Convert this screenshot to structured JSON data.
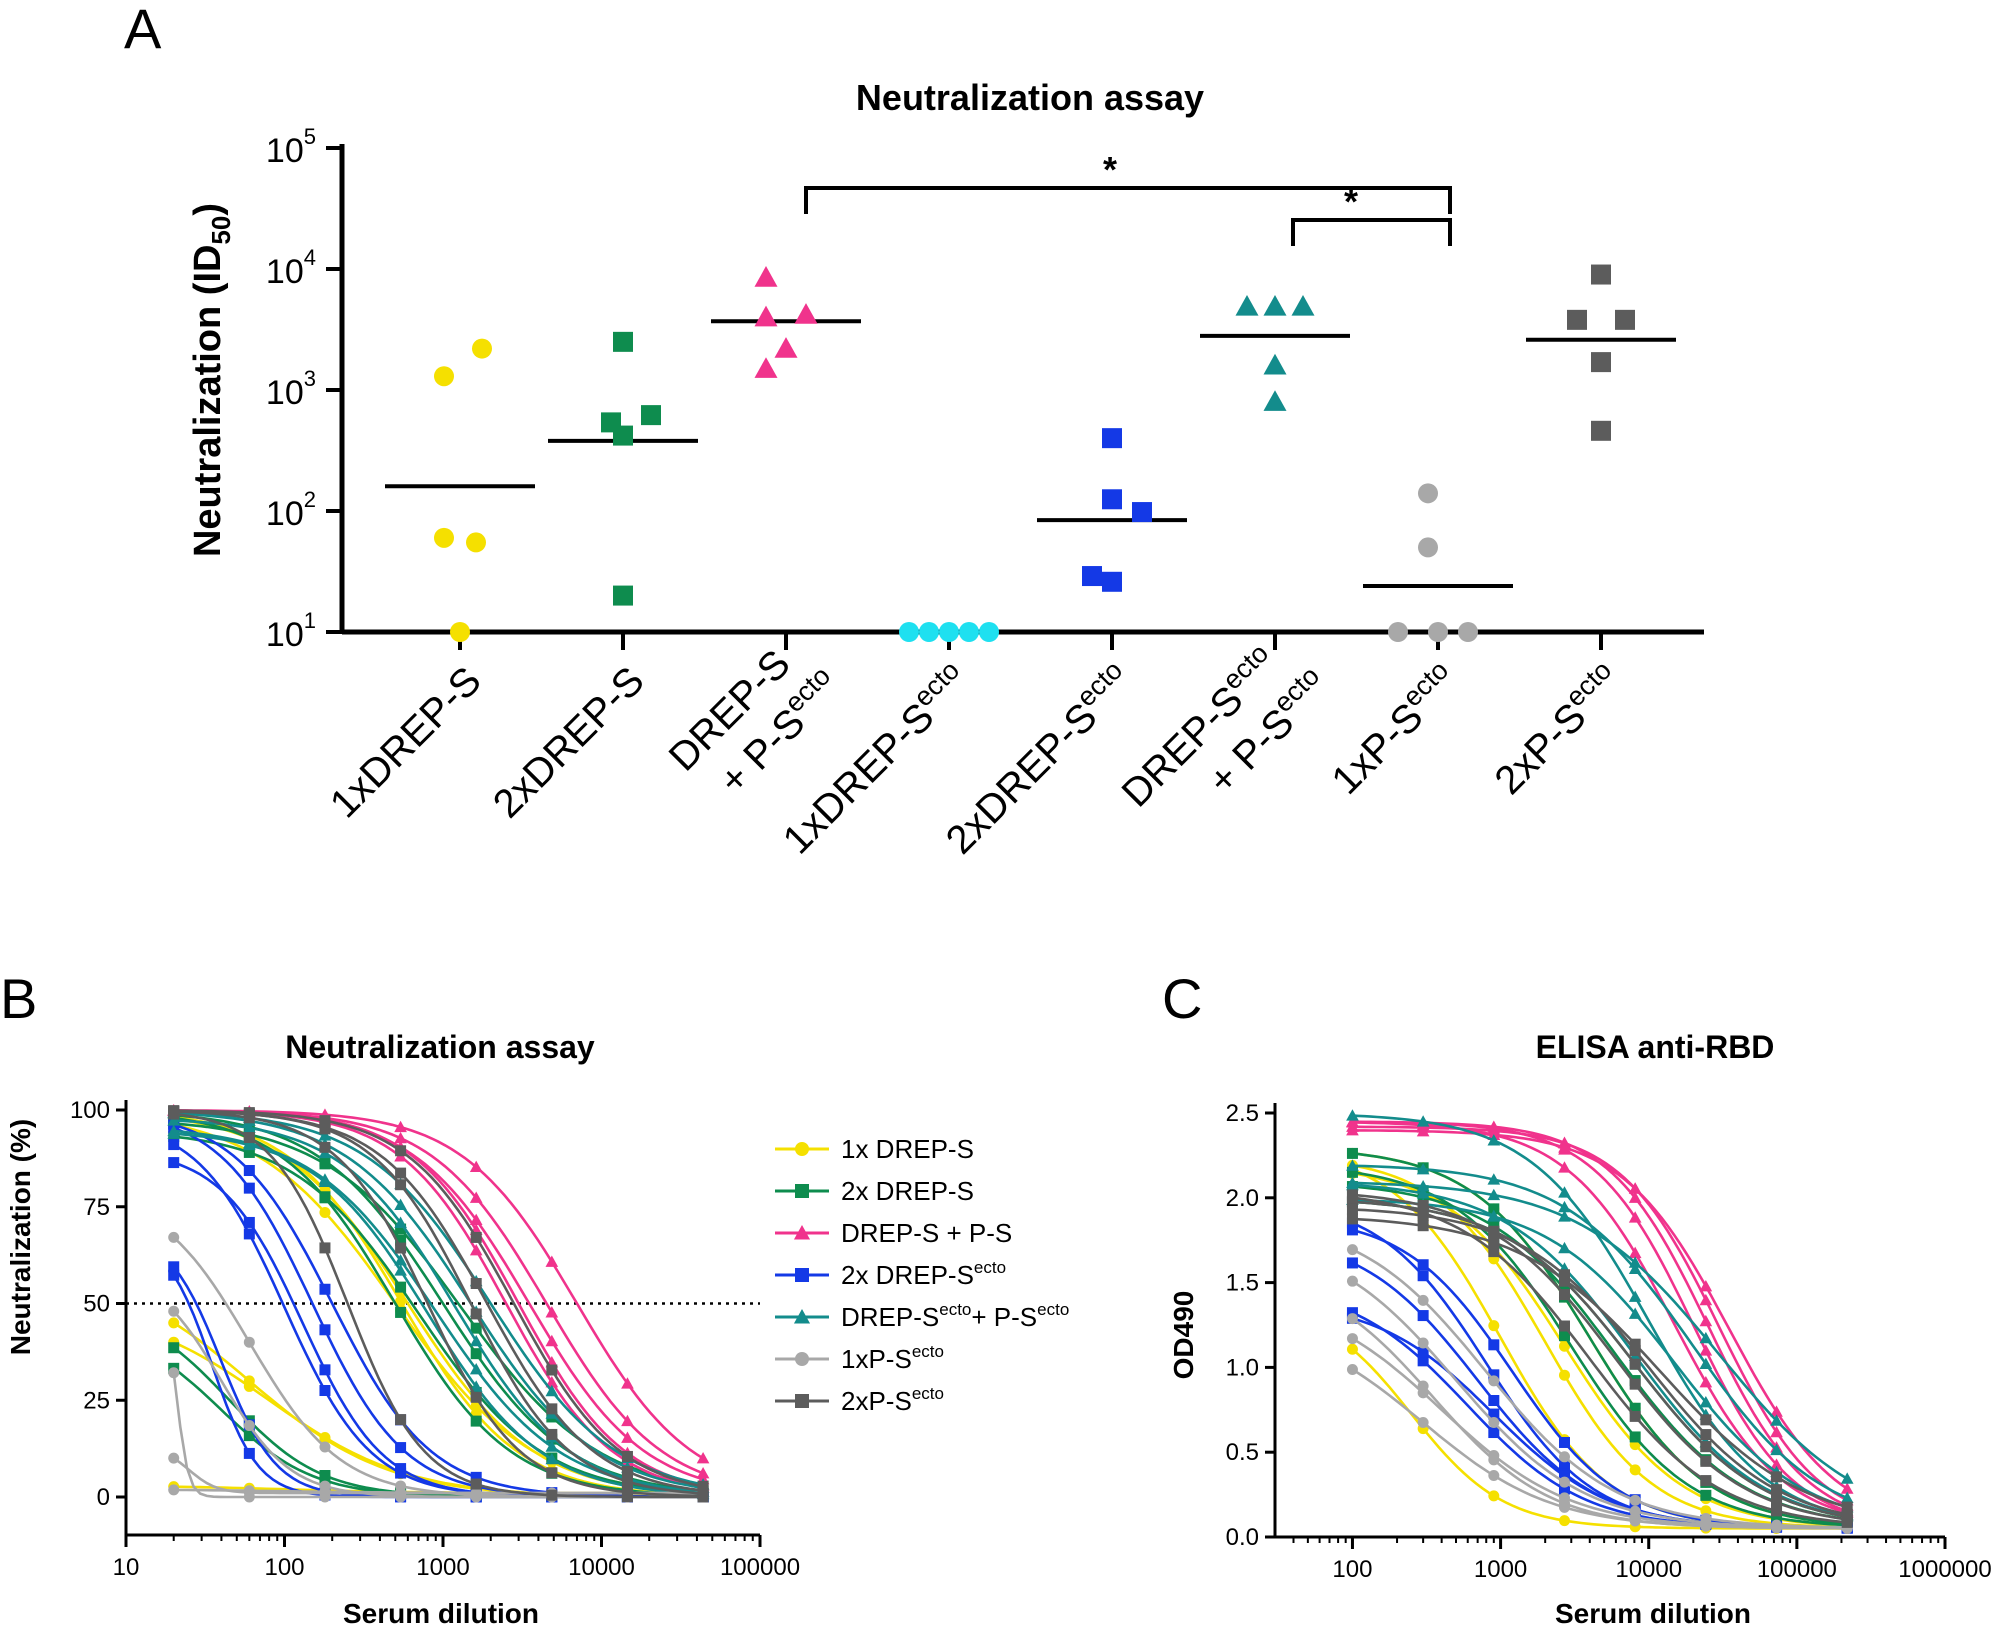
{
  "panels": {
    "a": {
      "letter": "A"
    },
    "b": {
      "letter": "B"
    },
    "c": {
      "letter": "C"
    }
  },
  "chart_data": [
    {
      "type": "scatter",
      "panel": "A",
      "title": "Neutralization assay",
      "ylabel": "Neutralization (ID50)",
      "ylabel_main": "Neutralization (ID",
      "ylabel_sub": "50",
      "ylabel_close": ")",
      "yscale": "log",
      "ylim": [
        10,
        100000
      ],
      "ytick_base": "10",
      "yticks": [
        {
          "value": 10,
          "exp": "1"
        },
        {
          "value": 100,
          "exp": "2"
        },
        {
          "value": 1000,
          "exp": "3"
        },
        {
          "value": 10000,
          "exp": "4"
        },
        {
          "value": 100000,
          "exp": "5"
        }
      ],
      "categories": [
        {
          "line1": "1xDREP-S",
          "sup1": "",
          "line2": "",
          "sup2": ""
        },
        {
          "line1": "2xDREP-S",
          "sup1": "",
          "line2": "",
          "sup2": ""
        },
        {
          "line1": "DREP-S",
          "sup1": "",
          "line2": "+ P-S",
          "sup2": "ecto"
        },
        {
          "line1": "1xDREP-S",
          "sup1": "ecto",
          "line2": "",
          "sup2": ""
        },
        {
          "line1": "2xDREP-S",
          "sup1": "ecto",
          "line2": "",
          "sup2": ""
        },
        {
          "line1": "DREP-S",
          "sup1": "ecto",
          "line2": "+ P-S",
          "sup2": "ecto"
        },
        {
          "line1": "1xP-S",
          "sup1": "ecto",
          "line2": "",
          "sup2": ""
        },
        {
          "line1": "2xP-S",
          "sup1": "ecto",
          "line2": "",
          "sup2": ""
        }
      ],
      "series": [
        {
          "name": "1xDREP-S",
          "color": "#f5e000",
          "marker": "circle",
          "values": [
            2200,
            1300,
            60,
            55,
            10
          ],
          "median": 160
        },
        {
          "name": "2xDREP-S",
          "color": "#0e8c4e",
          "marker": "square",
          "values": [
            2500,
            620,
            540,
            420,
            20
          ],
          "median": 380
        },
        {
          "name": "DREP-S + P-Secto",
          "color": "#f0338c",
          "marker": "triangle",
          "values": [
            8500,
            4200,
            4000,
            2200,
            1500
          ],
          "median": 3700
        },
        {
          "name": "1xDREP-Secto",
          "color": "#1ee0f0",
          "marker": "circle",
          "values": [
            10,
            10,
            10,
            10,
            10
          ],
          "median": null
        },
        {
          "name": "2xDREP-Secto",
          "color": "#1439e6",
          "marker": "square",
          "values": [
            400,
            125,
            98,
            29,
            26
          ],
          "median": 84
        },
        {
          "name": "DREP-Secto + P-Secto",
          "color": "#138c8c",
          "marker": "triangle",
          "values": [
            4900,
            4900,
            4900,
            1600,
            800
          ],
          "median": 2800
        },
        {
          "name": "1xP-Secto",
          "color": "#a8a8a8",
          "marker": "circle",
          "values": [
            140,
            50,
            10,
            10,
            10
          ],
          "median": 24
        },
        {
          "name": "2xP-Secto",
          "color": "#5c5c5c",
          "marker": "square",
          "values": [
            9000,
            3800,
            3800,
            1700,
            460
          ],
          "median": 2600
        }
      ],
      "significance": [
        {
          "from": 2,
          "to": 6,
          "label": "*"
        },
        {
          "from": 5,
          "to": 6,
          "label": "*"
        }
      ]
    },
    {
      "type": "line",
      "panel": "B",
      "title": "Neutralization assay",
      "xlabel": "Serum dilution",
      "ylabel": "Neutralization (%)",
      "xscale": "log",
      "xlim": [
        10,
        100000
      ],
      "ylim": [
        -8,
        100
      ],
      "xticks": [
        "10",
        "100",
        "1000",
        "10000",
        "100000"
      ],
      "yticks": [
        "0",
        "25",
        "50",
        "75",
        "100"
      ],
      "reference_line": {
        "y": 50,
        "style": "dotted"
      },
      "dilutions": [
        20,
        60,
        180,
        540,
        1620,
        4860,
        14580,
        43740
      ],
      "legend_position": "right",
      "series": [
        {
          "name": "1x DREP-S",
          "label": "1x DREP-S",
          "sup": "",
          "color": "#f5e000",
          "marker": "circle",
          "curves": [
            {
              "top": 100,
              "bottom": 0,
              "ic50": 600,
              "hill": 1.1
            },
            {
              "top": 100,
              "bottom": 0,
              "ic50": 550,
              "hill": 1.2
            },
            {
              "top": 100,
              "bottom": 0,
              "ic50": 500,
              "hill": 1.0
            },
            {
              "top": 60,
              "bottom": 0,
              "ic50": 60,
              "hill": 1.0
            },
            {
              "top": 50,
              "bottom": 0,
              "ic50": 80,
              "hill": 1.0
            },
            {
              "top": 3,
              "bottom": 1,
              "ic50": 100,
              "hill": 1.0
            }
          ]
        },
        {
          "name": "2x DREP-S",
          "label": "2x DREP-S",
          "sup": "",
          "color": "#0e8c4e",
          "marker": "square",
          "curves": [
            {
              "top": 100,
              "bottom": 0,
              "ic50": 1000,
              "hill": 1.1
            },
            {
              "top": 98,
              "bottom": 0,
              "ic50": 1300,
              "hill": 1.0
            },
            {
              "top": 95,
              "bottom": 0,
              "ic50": 700,
              "hill": 1.1
            },
            {
              "top": 100,
              "bottom": 0,
              "ic50": 500,
              "hill": 1.2
            },
            {
              "top": 50,
              "bottom": 0,
              "ic50": 45,
              "hill": 1.5
            },
            {
              "top": 45,
              "bottom": 0,
              "ic50": 40,
              "hill": 1.5
            }
          ]
        },
        {
          "name": "DREP-S + P-S",
          "label": "DREP-S + P-S",
          "sup": "",
          "color": "#f0338c",
          "marker": "triangle",
          "curves": [
            {
              "top": 100,
              "bottom": 0,
              "ic50": 7000,
              "hill": 1.2
            },
            {
              "top": 100,
              "bottom": 0,
              "ic50": 4500,
              "hill": 1.2
            },
            {
              "top": 100,
              "bottom": 0,
              "ic50": 3000,
              "hill": 1.3
            },
            {
              "top": 100,
              "bottom": 0,
              "ic50": 3500,
              "hill": 1.2
            },
            {
              "top": 100,
              "bottom": 0,
              "ic50": 2500,
              "hill": 1.3
            }
          ]
        },
        {
          "name": "2x DREP-Secto",
          "label": "2x DREP-S",
          "sup": "ecto",
          "color": "#1439e6",
          "marker": "square",
          "curves": [
            {
              "top": 100,
              "bottom": 0,
              "ic50": 150,
              "hill": 1.5
            },
            {
              "top": 100,
              "bottom": 0,
              "ic50": 200,
              "hill": 1.4
            },
            {
              "top": 98,
              "bottom": 0,
              "ic50": 100,
              "hill": 1.6
            },
            {
              "top": 90,
              "bottom": 0,
              "ic50": 130,
              "hill": 1.7
            },
            {
              "top": 70,
              "bottom": 0,
              "ic50": 40,
              "hill": 2.5
            },
            {
              "top": 68,
              "bottom": 0,
              "ic50": 35,
              "hill": 3.0
            }
          ]
        },
        {
          "name": "DREP-Secto+ P-Secto",
          "label": "DREP-S",
          "sup": "ecto",
          "label2": "+ P-S",
          "sup2": "ecto",
          "color": "#138c8c",
          "marker": "triangle",
          "curves": [
            {
              "top": 100,
              "bottom": 0,
              "ic50": 2000,
              "hill": 1.1
            },
            {
              "top": 100,
              "bottom": 0,
              "ic50": 1500,
              "hill": 1.1
            },
            {
              "top": 98,
              "bottom": 0,
              "ic50": 1200,
              "hill": 1.2
            },
            {
              "top": 96,
              "bottom": 0,
              "ic50": 900,
              "hill": 1.1
            },
            {
              "top": 95,
              "bottom": 0,
              "ic50": 800,
              "hill": 1.2
            }
          ]
        },
        {
          "name": "1xP-Secto",
          "label": "1xP-S",
          "sup": "ecto",
          "color": "#a8a8a8",
          "marker": "circle",
          "curves": [
            {
              "top": 80,
              "bottom": 0,
              "ic50": 60,
              "hill": 1.5
            },
            {
              "top": 60,
              "bottom": 0,
              "ic50": 40,
              "hill": 2.0
            },
            {
              "top": 50,
              "bottom": 0,
              "ic50": 21,
              "hill": 12.0
            },
            {
              "top": 13,
              "bottom": 1,
              "ic50": 25,
              "hill": 5.0
            },
            {
              "top": 2,
              "bottom": 1,
              "ic50": 100,
              "hill": 1.0
            }
          ]
        },
        {
          "name": "2xP-Secto",
          "label": "2xP-S",
          "sup": "ecto",
          "color": "#5c5c5c",
          "marker": "square",
          "curves": [
            {
              "top": 100,
              "bottom": 0,
              "ic50": 2800,
              "hill": 1.3
            },
            {
              "top": 100,
              "bottom": 0,
              "ic50": 1900,
              "hill": 1.3
            },
            {
              "top": 100,
              "bottom": 0,
              "ic50": 1500,
              "hill": 1.4
            },
            {
              "top": 100,
              "bottom": 0,
              "ic50": 800,
              "hill": 1.5
            },
            {
              "top": 100,
              "bottom": 0,
              "ic50": 250,
              "hill": 1.8
            }
          ]
        }
      ]
    },
    {
      "type": "line",
      "panel": "C",
      "title": "ELISA anti-RBD",
      "xlabel": "Serum dilution",
      "ylabel": "OD490",
      "xscale": "log",
      "xlim": [
        30,
        1000000
      ],
      "ylim": [
        0,
        2.5
      ],
      "xticks": [
        "100",
        "1000",
        "10000",
        "100000",
        "1000000"
      ],
      "yticks": [
        "0.0",
        "0.5",
        "1.0",
        "1.5",
        "2.0",
        "2.5"
      ],
      "dilutions": [
        100,
        300,
        900,
        2700,
        8100,
        24300,
        72900,
        218700
      ],
      "series": [
        {
          "name": "1x DREP-S",
          "color": "#f5e000",
          "marker": "circle",
          "curves": [
            {
              "top": 2.3,
              "bottom": 0.05,
              "ec50": 1000,
              "hill": 1.2
            },
            {
              "top": 2.25,
              "bottom": 0.05,
              "ec50": 2000,
              "hill": 1.2
            },
            {
              "top": 2.2,
              "bottom": 0.05,
              "ec50": 2700,
              "hill": 1.1
            },
            {
              "top": 2.3,
              "bottom": 0.05,
              "ec50": 4000,
              "hill": 1.1
            },
            {
              "top": 1.4,
              "bottom": 0.05,
              "ec50": 250,
              "hill": 1.4
            }
          ]
        },
        {
          "name": "2x DREP-S",
          "color": "#0e8c4e",
          "marker": "square",
          "curves": [
            {
              "top": 2.3,
              "bottom": 0.05,
              "ec50": 4000,
              "hill": 1.1
            },
            {
              "top": 2.2,
              "bottom": 0.05,
              "ec50": 3000,
              "hill": 1.1
            },
            {
              "top": 2.1,
              "bottom": 0.05,
              "ec50": 6000,
              "hill": 1.0
            },
            {
              "top": 2.0,
              "bottom": 0.05,
              "ec50": 8000,
              "hill": 1.0
            }
          ]
        },
        {
          "name": "DREP-S + P-S",
          "color": "#f0338c",
          "marker": "triangle",
          "curves": [
            {
              "top": 2.45,
              "bottom": 0.05,
              "ec50": 20000,
              "hill": 1.3
            },
            {
              "top": 2.45,
              "bottom": 0.05,
              "ec50": 25000,
              "hill": 1.3
            },
            {
              "top": 2.42,
              "bottom": 0.05,
              "ec50": 30000,
              "hill": 1.3
            },
            {
              "top": 2.4,
              "bottom": 0.05,
              "ec50": 35000,
              "hill": 1.2
            },
            {
              "top": 2.45,
              "bottom": 0.05,
              "ec50": 15000,
              "hill": 1.2
            }
          ]
        },
        {
          "name": "2x DREP-Secto",
          "color": "#1439e6",
          "marker": "square",
          "curves": [
            {
              "top": 2.0,
              "bottom": 0.05,
              "ec50": 800,
              "hill": 1.2
            },
            {
              "top": 1.9,
              "bottom": 0.05,
              "ec50": 1200,
              "hill": 1.2
            },
            {
              "top": 1.8,
              "bottom": 0.05,
              "ec50": 700,
              "hill": 1.1
            },
            {
              "top": 1.5,
              "bottom": 0.05,
              "ec50": 600,
              "hill": 1.1
            },
            {
              "top": 1.4,
              "bottom": 0.05,
              "ec50": 900,
              "hill": 1.1
            }
          ]
        },
        {
          "name": "DREP-Secto+ P-Secto",
          "color": "#138c8c",
          "marker": "triangle",
          "curves": [
            {
              "top": 2.5,
              "bottom": 0.05,
              "ec50": 10000,
              "hill": 1.1
            },
            {
              "top": 2.2,
              "bottom": 0.05,
              "ec50": 20000,
              "hill": 1.0
            },
            {
              "top": 2.1,
              "bottom": 0.05,
              "ec50": 30000,
              "hill": 0.9
            },
            {
              "top": 2.0,
              "bottom": 0.05,
              "ec50": 15000,
              "hill": 1.0
            },
            {
              "top": 2.1,
              "bottom": 0.05,
              "ec50": 8000,
              "hill": 1.0
            }
          ]
        },
        {
          "name": "1xP-Secto",
          "color": "#a8a8a8",
          "marker": "circle",
          "curves": [
            {
              "top": 1.9,
              "bottom": 0.05,
              "ec50": 800,
              "hill": 1.0
            },
            {
              "top": 1.8,
              "bottom": 0.05,
              "ec50": 500,
              "hill": 1.0
            },
            {
              "top": 1.6,
              "bottom": 0.05,
              "ec50": 350,
              "hill": 1.1
            },
            {
              "top": 1.45,
              "bottom": 0.05,
              "ec50": 400,
              "hill": 1.0
            },
            {
              "top": 1.3,
              "bottom": 0.05,
              "ec50": 300,
              "hill": 1.0
            }
          ]
        },
        {
          "name": "2xP-Secto",
          "color": "#5c5c5c",
          "marker": "square",
          "curves": [
            {
              "top": 2.05,
              "bottom": 0.05,
              "ec50": 6000,
              "hill": 1.0
            },
            {
              "top": 2.0,
              "bottom": 0.05,
              "ec50": 8000,
              "hill": 1.0
            },
            {
              "top": 2.05,
              "bottom": 0.05,
              "ec50": 4000,
              "hill": 1.0
            },
            {
              "top": 1.95,
              "bottom": 0.05,
              "ec50": 10000,
              "hill": 1.0
            },
            {
              "top": 1.9,
              "bottom": 0.05,
              "ec50": 12000,
              "hill": 0.9
            }
          ]
        }
      ]
    }
  ]
}
